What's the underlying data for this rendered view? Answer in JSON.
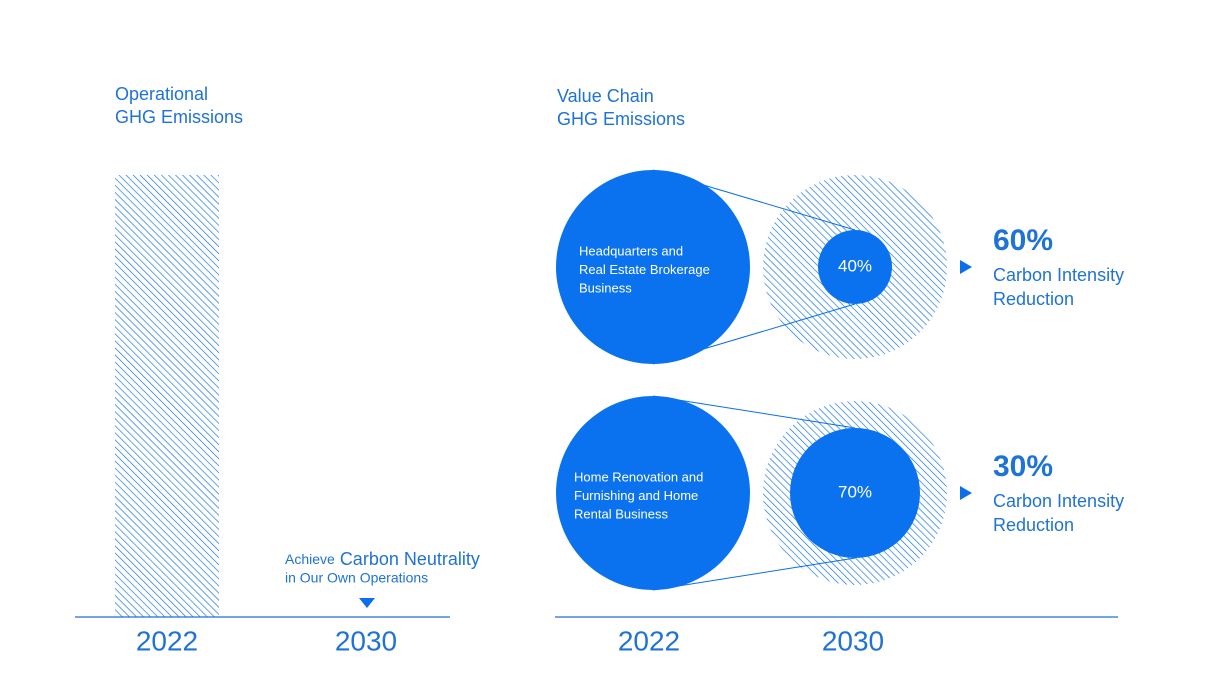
{
  "left": {
    "title_lines": [
      "Operational",
      "GHG Emissions"
    ],
    "years": [
      "2022",
      "2030"
    ],
    "annotation": {
      "prefix": "Achieve",
      "emphasis": "Carbon Neutrality",
      "line2": "in Our Own Operations"
    }
  },
  "right": {
    "title_lines": [
      "Value Chain",
      "GHG Emissions"
    ],
    "years": [
      "2022",
      "2030"
    ],
    "groups": [
      {
        "label_lines": [
          "Headquarters and",
          "Real Estate Brokerage",
          "Business"
        ],
        "share": "40%",
        "reduction": "60%",
        "reduction_label_lines": [
          "Carbon Intensity",
          "Reduction"
        ]
      },
      {
        "label_lines": [
          "Home Renovation and",
          "Furnishing and Home",
          "Rental Business"
        ],
        "share": "70%",
        "reduction": "30%",
        "reduction_label_lines": [
          "Carbon Intensity",
          "Reduction"
        ]
      }
    ]
  }
}
